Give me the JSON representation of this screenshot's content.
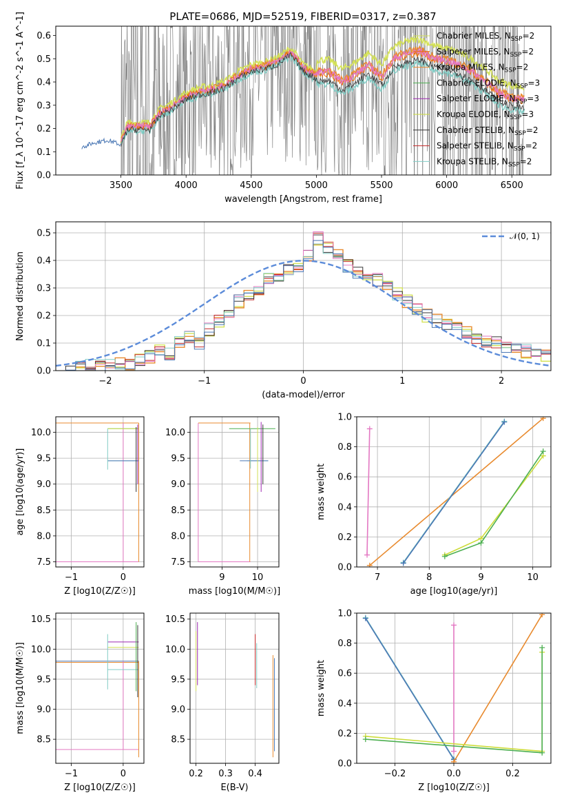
{
  "title": "PLATE=0686, MJD=52519, FIBERID=0317, z=0.387",
  "colors": {
    "chabrier_miles": "#d4e157",
    "salpeter_miles": "#ef6c00",
    "kroupa_miles": "#e88a2e",
    "chabrier_elodie": "#4caf50",
    "salpeter_elodie": "#9c27b0",
    "kroupa_elodie": "#cddc39",
    "chabrier_stelib": "#333333",
    "salpeter_stelib": "#c62828",
    "kroupa_stelib": "#80cbc4",
    "pink": "#e377c2",
    "steelblue": "#4a77b4",
    "data": "#808080",
    "gauss": "#5b8bd9"
  },
  "legend_spectrum": [
    {
      "text": "Chabrier MILES, N",
      "sub": "SSP",
      "tail": "=2",
      "color": "#d4e157"
    },
    {
      "text": "Salpeter MILES, N",
      "sub": "SSP",
      "tail": "=2",
      "color": "#ef6c00"
    },
    {
      "text": "Kroupa MILES, N",
      "sub": "SSP",
      "tail": "=2",
      "color": "#e88a2e"
    },
    {
      "text": "Chabrier ELODIE, N",
      "sub": "SSP",
      "tail": "=3",
      "color": "#4caf50"
    },
    {
      "text": "Salpeter ELODIE, N",
      "sub": "SSP",
      "tail": "=3",
      "color": "#9c27b0"
    },
    {
      "text": "Kroupa ELODIE, N",
      "sub": "SSP",
      "tail": "=3",
      "color": "#cddc39"
    },
    {
      "text": "Chabrier STELIB, N",
      "sub": "SSP",
      "tail": "=2",
      "color": "#333333"
    },
    {
      "text": "Salpeter STELIB, N",
      "sub": "SSP",
      "tail": "=2",
      "color": "#c62828"
    },
    {
      "text": "Kroupa STELIB, N",
      "sub": "SSP",
      "tail": "=2",
      "color": "#80cbc4"
    }
  ],
  "legend_hist": {
    "text": "𝒩(0, 1)"
  },
  "chart_data": [
    {
      "id": "spectrum",
      "type": "line",
      "xlabel": "wavelength [Angstrom, rest frame]",
      "ylabel": "Flux [f_λ 10^-17 erg cm^-2 s^-1 A^-1]",
      "xlim": [
        3000,
        6800
      ],
      "ylim": [
        0,
        0.64
      ],
      "xticks": [
        3500,
        4000,
        4500,
        5000,
        5500,
        6000,
        6500
      ],
      "yticks": [
        0.0,
        0.1,
        0.2,
        0.3,
        0.4,
        0.5,
        0.6
      ],
      "model_x": [
        3200,
        3300,
        3400,
        3500,
        3550,
        3650,
        3720,
        3800,
        3900,
        4000,
        4100,
        4200,
        4300,
        4400,
        4500,
        4600,
        4700,
        4800,
        4850,
        4900,
        5000,
        5100,
        5200,
        5300,
        5400,
        5500,
        5600,
        5700,
        5800,
        5900,
        6000,
        6100,
        6200,
        6300,
        6400,
        6500,
        6600
      ],
      "model_y": [
        0.12,
        0.14,
        0.15,
        0.13,
        0.2,
        0.2,
        0.2,
        0.26,
        0.29,
        0.33,
        0.35,
        0.36,
        0.38,
        0.42,
        0.45,
        0.46,
        0.48,
        0.52,
        0.49,
        0.45,
        0.42,
        0.42,
        0.38,
        0.41,
        0.45,
        0.4,
        0.48,
        0.5,
        0.51,
        0.48,
        0.47,
        0.45,
        0.42,
        0.38,
        0.33,
        0.31,
        0.3
      ]
    },
    {
      "id": "residual_hist",
      "type": "bar",
      "xlabel": "(data-model)/error",
      "ylabel": "Normed distribution",
      "xlim": [
        -2.5,
        2.5
      ],
      "ylim": [
        0,
        0.54
      ],
      "xticks": [
        -2,
        -1,
        0,
        1,
        2
      ],
      "yticks": [
        0.0,
        0.1,
        0.2,
        0.3,
        0.4,
        0.5
      ],
      "bin_edges": [
        -2.4,
        -2.3,
        -2.2,
        -2.1,
        -2.0,
        -1.9,
        -1.8,
        -1.7,
        -1.6,
        -1.5,
        -1.4,
        -1.3,
        -1.2,
        -1.1,
        -1.0,
        -0.9,
        -0.8,
        -0.7,
        -0.6,
        -0.5,
        -0.4,
        -0.3,
        -0.2,
        -0.1,
        0.0,
        0.1,
        0.2,
        0.3,
        0.4,
        0.5,
        0.6,
        0.7,
        0.8,
        0.9,
        1.0,
        1.1,
        1.2,
        1.3,
        1.4,
        1.5,
        1.6,
        1.7,
        1.8,
        1.9,
        2.0,
        2.1,
        2.2,
        2.3,
        2.4,
        2.5
      ],
      "values": [
        0.005,
        0.01,
        0.02,
        0.015,
        0.03,
        0.03,
        0.02,
        0.04,
        0.05,
        0.08,
        0.06,
        0.1,
        0.12,
        0.1,
        0.15,
        0.18,
        0.2,
        0.25,
        0.28,
        0.3,
        0.33,
        0.35,
        0.37,
        0.38,
        0.42,
        0.48,
        0.45,
        0.42,
        0.38,
        0.36,
        0.34,
        0.33,
        0.3,
        0.28,
        0.25,
        0.22,
        0.2,
        0.18,
        0.17,
        0.15,
        0.14,
        0.12,
        0.1,
        0.1,
        0.09,
        0.08,
        0.07,
        0.06,
        0.05
      ],
      "gauss_label": "𝒩(0, 1)"
    },
    {
      "id": "age_vs_Z",
      "type": "scatter",
      "xlabel": "Z [log10(Z/Z☉)]",
      "ylabel": "age [log10(age/yr)]",
      "xlim": [
        -1.3,
        0.4
      ],
      "ylim": [
        7.4,
        10.3
      ],
      "xticks": [
        -1,
        0
      ],
      "yticks": [
        7.5,
        8.0,
        8.5,
        9.0,
        9.5,
        10.0
      ]
    },
    {
      "id": "age_vs_mass",
      "type": "scatter",
      "xlabel": "mass [log10(M/M☉)]",
      "ylabel": "",
      "xlim": [
        8.1,
        10.6
      ],
      "ylim": [
        7.4,
        10.3
      ],
      "xticks": [
        9,
        10
      ],
      "yticks": [
        7.5,
        8.0,
        8.5,
        9.0,
        9.5,
        10.0
      ]
    },
    {
      "id": "massweight_vs_age",
      "type": "line",
      "xlabel": "age [log10(age/yr)]",
      "ylabel": "mass weight",
      "xlim": [
        6.6,
        10.35
      ],
      "ylim": [
        0,
        1.0
      ],
      "xticks": [
        7,
        8,
        9,
        10
      ],
      "yticks": [
        0.0,
        0.2,
        0.4,
        0.6,
        0.8,
        1.0
      ],
      "series": [
        {
          "x": [
            6.8,
            6.85
          ],
          "y": [
            0.08,
            0.92
          ],
          "color": "#e377c2"
        },
        {
          "x": [
            6.85,
            10.2
          ],
          "y": [
            0.01,
            0.99
          ],
          "color": "#e88a2e"
        },
        {
          "x": [
            7.5,
            9.45
          ],
          "y": [
            0.03,
            0.97
          ],
          "color": "#80cbc4"
        },
        {
          "x": [
            7.5,
            9.45
          ],
          "y": [
            0.025,
            0.965
          ],
          "color": "#4a77b4"
        },
        {
          "x": [
            8.3,
            9.0,
            10.2
          ],
          "y": [
            0.08,
            0.19,
            0.74
          ],
          "color": "#cddc39"
        },
        {
          "x": [
            8.3,
            9.0,
            10.2
          ],
          "y": [
            0.07,
            0.16,
            0.77
          ],
          "color": "#4caf50"
        }
      ]
    },
    {
      "id": "mass_vs_Z",
      "type": "scatter",
      "xlabel": "Z [log10(Z/Z☉)]",
      "ylabel": "mass [log10(M/M☉)]",
      "xlim": [
        -1.3,
        0.4
      ],
      "ylim": [
        8.1,
        10.6
      ],
      "xticks": [
        -1,
        0
      ],
      "yticks": [
        8.5,
        9.0,
        9.5,
        10.0,
        10.5
      ]
    },
    {
      "id": "mass_vs_EBV",
      "type": "scatter",
      "xlabel": "E(B-V)",
      "ylabel": "",
      "xlim": [
        0.18,
        0.48
      ],
      "ylim": [
        8.1,
        10.6
      ],
      "xticks": [
        0.2,
        0.3,
        0.4
      ],
      "yticks": [
        8.5,
        9.0,
        9.5,
        10.0,
        10.5
      ]
    },
    {
      "id": "massweight_vs_Z",
      "type": "line",
      "xlabel": "Z [log10(Z/Z☉)]",
      "ylabel": "mass weight",
      "xlim": [
        -0.33,
        0.33
      ],
      "ylim": [
        0,
        1.0
      ],
      "xticks": [
        -0.2,
        0.0,
        0.2
      ],
      "yticks": [
        0.0,
        0.2,
        0.4,
        0.6,
        0.8,
        1.0
      ],
      "series": [
        {
          "x": [
            -0.3,
            0.0
          ],
          "y": [
            0.97,
            0.03
          ],
          "color": "#80cbc4"
        },
        {
          "x": [
            -0.3,
            0.0
          ],
          "y": [
            0.965,
            0.025
          ],
          "color": "#4a77b4"
        },
        {
          "x": [
            0.0,
            0.0
          ],
          "y": [
            0.08,
            0.92
          ],
          "color": "#e377c2"
        },
        {
          "x": [
            0.0,
            0.3
          ],
          "y": [
            0.01,
            0.99
          ],
          "color": "#e88a2e"
        },
        {
          "x": [
            -0.3,
            0.3,
            0.3
          ],
          "y": [
            0.18,
            0.08,
            0.74
          ],
          "color": "#cddc39"
        },
        {
          "x": [
            -0.3,
            0.3,
            0.3
          ],
          "y": [
            0.16,
            0.07,
            0.77
          ],
          "color": "#4caf50"
        }
      ]
    }
  ]
}
